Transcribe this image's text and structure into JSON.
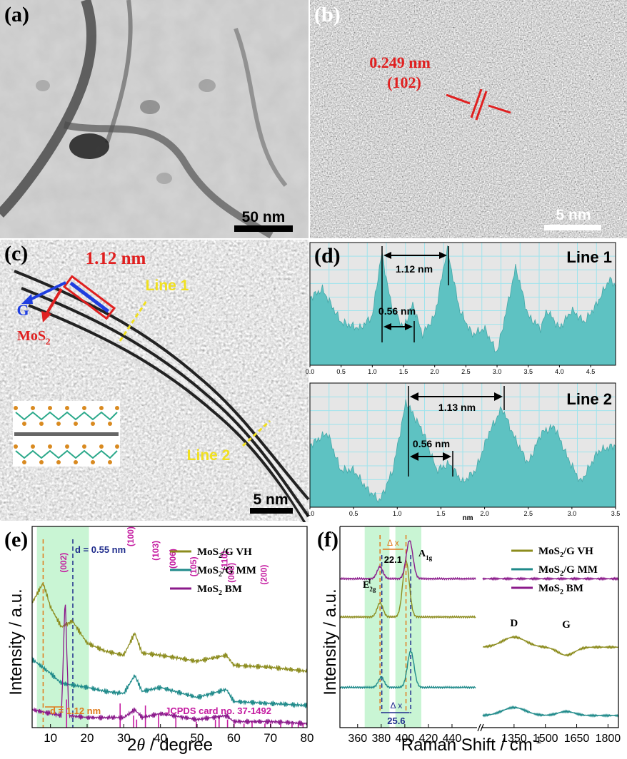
{
  "panels": {
    "a": {
      "label": "(a)",
      "scalebar": "50 nm"
    },
    "b": {
      "label": "(b)",
      "spacing": "0.249 nm",
      "plane": "(102)",
      "scalebar": "5 nm"
    },
    "c": {
      "label": "(c)",
      "spacing": "1.12 nm",
      "g_label": "G",
      "mos2_label": "MoS",
      "mos2_sub": "2",
      "line1": "Line 1",
      "line2": "Line 2",
      "scalebar": "5 nm"
    },
    "d": {
      "label": "(d)",
      "top": {
        "line": "Line 1",
        "span1": "1.12 nm",
        "span2": "0.56 nm"
      },
      "bottom": {
        "line": "Line 2",
        "span1": "1.13 nm",
        "span2": "0.56 nm"
      },
      "xunit": "nm"
    },
    "e": {
      "label": "(e)",
      "ylabel": "Intensity / a.u.",
      "xlabel_pre": "2",
      "xlabel_theta": "θ",
      "xlabel_post": " / degree",
      "d_top": "d = 0.55 nm",
      "d_bottom": "d = 1.12 nm",
      "peaks": [
        "(002)",
        "(100)",
        "(103)",
        "(006)",
        "(105)",
        "(110)",
        "(008)",
        "(200)"
      ],
      "jcpds": "JCPDS card no. 37-1492"
    },
    "f": {
      "label": "(f)",
      "ylabel": "Intensity / a.u.",
      "xlabel": "Raman Shift / cm",
      "dx_top": "22.1",
      "dx_bottom": "25.6",
      "dx_label": "Δ x",
      "e2g": "E",
      "a1g": "A",
      "d_band": "D",
      "g_band": "G"
    }
  },
  "legend": [
    {
      "name": "MoS2/G VH",
      "base": "MoS",
      "sub": "2",
      "rest": "/G VH",
      "color": "#8c8c1e"
    },
    {
      "name": "MoS2/G MM",
      "base": "MoS",
      "sub": "2",
      "rest": "/G MM",
      "color": "#1f8a8a"
    },
    {
      "name": "MoS2 BM",
      "base": "MoS",
      "sub": "2",
      "rest": " BM",
      "color": "#8b1a8b"
    }
  ],
  "chart_data": [
    {
      "type": "area",
      "panel": "d-top",
      "xlabel": "",
      "ylabel": "",
      "xlim": [
        0,
        4.9
      ],
      "x_ticks": [
        0.0,
        0.5,
        1.0,
        1.5,
        2.0,
        2.5,
        3.0,
        3.5,
        4.0,
        4.5
      ],
      "series": [
        {
          "values_x": [
            0,
            0.2,
            0.5,
            0.8,
            1.0,
            1.15,
            1.3,
            1.5,
            1.65,
            1.8,
            2.0,
            2.2,
            2.4,
            2.6,
            2.8,
            3.0,
            3.3,
            3.5,
            3.7,
            3.8,
            4.0,
            4.2,
            4.4,
            4.6,
            4.8,
            4.9
          ],
          "values_y": [
            0.55,
            0.62,
            0.35,
            0.3,
            0.4,
            0.92,
            0.5,
            0.3,
            0.5,
            0.25,
            0.4,
            0.95,
            0.45,
            0.25,
            0.3,
            0.1,
            0.8,
            0.4,
            0.3,
            0.45,
            0.3,
            0.45,
            0.35,
            0.5,
            0.7,
            0.65
          ]
        }
      ]
    },
    {
      "type": "area",
      "panel": "d-bottom",
      "xlabel": "",
      "ylabel": "",
      "xlim": [
        0,
        3.5
      ],
      "x_ticks": [
        0.0,
        0.5,
        1.0,
        1.5,
        2.0,
        2.5,
        3.0,
        3.5
      ],
      "series": [
        {
          "values_x": [
            0,
            0.2,
            0.35,
            0.5,
            0.65,
            0.8,
            0.95,
            1.1,
            1.3,
            1.45,
            1.6,
            1.75,
            1.9,
            2.05,
            2.2,
            2.35,
            2.5,
            2.65,
            2.8,
            2.95,
            3.1,
            3.3,
            3.5
          ],
          "values_y": [
            0.5,
            0.6,
            0.3,
            0.3,
            0.15,
            0.05,
            0.3,
            0.85,
            0.6,
            0.3,
            0.35,
            0.2,
            0.3,
            0.6,
            0.8,
            0.55,
            0.35,
            0.6,
            0.65,
            0.4,
            0.2,
            0.45,
            0.5
          ]
        }
      ]
    },
    {
      "type": "line",
      "panel": "e",
      "xlabel": "2θ / degree",
      "ylabel": "Intensity / a.u.",
      "xlim": [
        5,
        80
      ],
      "x_ticks": [
        10,
        20,
        30,
        40,
        50,
        60,
        70,
        80
      ],
      "series": [
        {
          "name": "MoS2/G VH",
          "x": [
            5,
            8,
            10,
            13,
            16,
            20,
            25,
            30,
            33,
            35,
            40,
            50,
            58,
            60,
            70,
            80
          ],
          "y": [
            0.62,
            0.72,
            0.6,
            0.5,
            0.53,
            0.42,
            0.38,
            0.36,
            0.47,
            0.37,
            0.36,
            0.33,
            0.36,
            0.31,
            0.3,
            0.28
          ]
        },
        {
          "name": "MoS2/G MM",
          "x": [
            5,
            10,
            13,
            20,
            25,
            30,
            33,
            35,
            40,
            50,
            58,
            60,
            70,
            80
          ],
          "y": [
            0.34,
            0.27,
            0.22,
            0.2,
            0.18,
            0.17,
            0.26,
            0.18,
            0.2,
            0.15,
            0.19,
            0.13,
            0.12,
            0.11
          ]
        },
        {
          "name": "MoS2 BM",
          "x": [
            5,
            10,
            13,
            14,
            15,
            20,
            30,
            33,
            35,
            40,
            50,
            58,
            60,
            70,
            80
          ],
          "y": [
            0.09,
            0.07,
            0.06,
            0.66,
            0.06,
            0.05,
            0.05,
            0.09,
            0.05,
            0.07,
            0.04,
            0.06,
            0.03,
            0.03,
            0.02
          ]
        }
      ],
      "jcpds_lines": [
        14.4,
        29,
        32.7,
        33.5,
        35.9,
        39.5,
        44.2,
        49.8,
        55,
        56,
        58.3,
        60.1,
        62.8,
        65,
        68.5,
        70.1,
        72.8,
        75.9,
        77.6,
        78.9
      ]
    },
    {
      "type": "line",
      "panel": "f",
      "xlabel": "Raman Shift / cm-1",
      "ylabel": "Intensity / a.u.",
      "x_ticks_left": [
        360,
        380,
        400,
        420,
        440
      ],
      "x_ticks_right": [
        1350,
        1500,
        1650,
        1800
      ],
      "series": [
        {
          "name": "MoS2/G VH",
          "peaks": [
            {
              "x": 379,
              "y": 0.62
            },
            {
              "x": 401,
              "y": 0.83
            },
            {
              "x": 1350,
              "y": 0.45
            },
            {
              "x": 1600,
              "y": 0.36
            }
          ]
        },
        {
          "name": "MoS2/G MM",
          "peaks": [
            {
              "x": 380,
              "y": 0.25
            },
            {
              "x": 405,
              "y": 0.38
            },
            {
              "x": 1350,
              "y": 0.1
            },
            {
              "x": 1600,
              "y": 0.08
            }
          ]
        },
        {
          "name": "MoS2 BM",
          "peaks": [
            {
              "x": 379,
              "y": 0.8
            },
            {
              "x": 404,
              "y": 0.93
            }
          ]
        }
      ]
    }
  ]
}
